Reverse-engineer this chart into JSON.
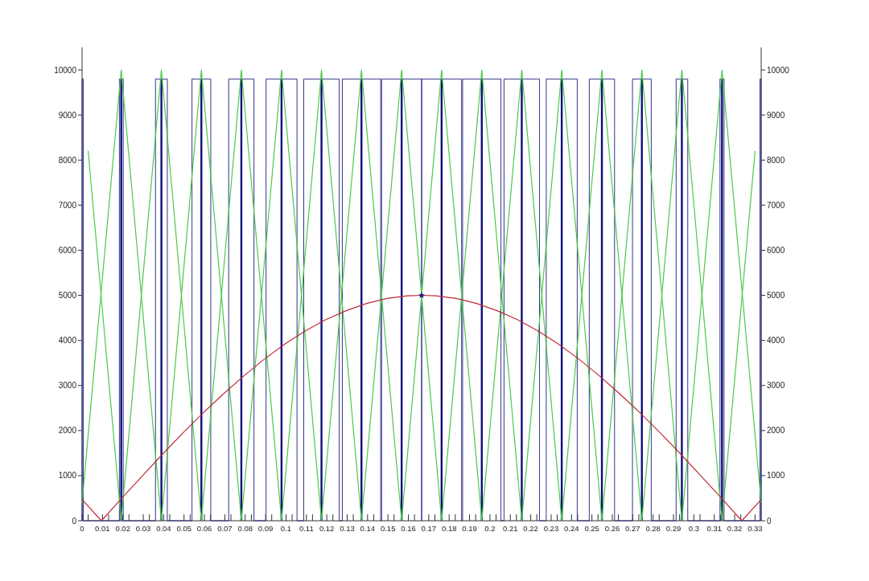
{
  "chart_data": {
    "type": "line",
    "xlim": [
      0,
      0.333
    ],
    "xticks": [
      0,
      {
        "value": 0.003,
        "label": null
      },
      0.01,
      {
        "value": 0.013,
        "label": null
      },
      0.02,
      {
        "value": 0.023,
        "label": null
      },
      0.03,
      {
        "value": 0.033,
        "label": null
      },
      0.04,
      {
        "value": 0.043,
        "label": null
      },
      0.05,
      {
        "value": 0.053,
        "label": null
      },
      0.06,
      {
        "value": 0.063,
        "label": null
      },
      0.07,
      {
        "value": 0.073,
        "label": null
      },
      0.08,
      {
        "value": 0.083,
        "label": null
      },
      0.09,
      {
        "value": 0.093,
        "label": null
      },
      0.1,
      {
        "value": 0.103,
        "label": null
      },
      0.11,
      {
        "value": 0.113,
        "label": null
      },
      0.12,
      {
        "value": 0.123,
        "label": null
      },
      0.13,
      {
        "value": 0.133,
        "label": null
      },
      0.14,
      {
        "value": 0.143,
        "label": null
      },
      0.15,
      {
        "value": 0.153,
        "label": null
      },
      0.16,
      {
        "value": 0.163,
        "label": null
      },
      0.17,
      {
        "value": 0.173,
        "label": null
      },
      0.18,
      {
        "value": 0.183,
        "label": null
      },
      0.19,
      {
        "value": 0.193,
        "label": null
      },
      0.2,
      {
        "value": 0.203,
        "label": null
      },
      0.21,
      {
        "value": 0.213,
        "label": null
      },
      0.22,
      {
        "value": 0.223,
        "label": null
      },
      0.23,
      {
        "value": 0.233,
        "label": null
      },
      0.24,
      {
        "value": 0.243,
        "label": null
      },
      0.25,
      {
        "value": 0.253,
        "label": null
      },
      0.26,
      {
        "value": 0.263,
        "label": null
      },
      0.27,
      {
        "value": 0.273,
        "label": null
      },
      0.28,
      {
        "value": 0.283,
        "label": null
      },
      0.29,
      {
        "value": 0.293,
        "label": null
      },
      0.3,
      {
        "value": 0.303,
        "label": null
      },
      0.31,
      {
        "value": 0.313,
        "label": null
      },
      0.32,
      {
        "value": 0.323,
        "label": null
      },
      0.33
    ],
    "ylim": [
      0,
      10500
    ],
    "yticks": [
      0,
      1000,
      2000,
      3000,
      4000,
      5000,
      6000,
      7000,
      8000,
      9000,
      10000
    ],
    "y2lim": [
      0,
      10500
    ],
    "y2ticks": [
      0,
      1000,
      2000,
      3000,
      4000,
      5000,
      6000,
      7000,
      8000,
      9000,
      10000
    ],
    "series": [
      {
        "type": "step",
        "color": "#34348c",
        "x": [
          0,
          0,
          0.0006,
          0.0183,
          0.0202,
          0.036,
          0.0418,
          0.0539,
          0.0631,
          0.0719,
          0.0843,
          0.0902,
          0.1054,
          0.1087,
          0.1261,
          0.1276,
          0.1464,
          0.1469,
          0.1665,
          0.1665,
          0.1861,
          0.1866,
          0.2054,
          0.2069,
          0.2243,
          0.2276,
          0.2428,
          0.2487,
          0.2611,
          0.2699,
          0.2791,
          0.2913,
          0.297,
          0.3128,
          0.3148,
          0.3324,
          0.333
        ],
        "values": [
          0,
          9800,
          0,
          9800,
          0,
          9800,
          0,
          9800,
          0,
          9800,
          0,
          9800,
          0,
          9800,
          0,
          9800,
          0,
          9800,
          0,
          9800,
          0,
          9800,
          0,
          9800,
          0,
          9800,
          0,
          9800,
          0,
          9800,
          0,
          9800,
          0,
          9800,
          0,
          9800,
          0
        ]
      },
      {
        "type": "bar",
        "color": "#0e0e7a",
        "x": [
          0.0192,
          0.0389,
          0.0585,
          0.0781,
          0.0978,
          0.1174,
          0.137,
          0.1567,
          0.1763,
          0.196,
          0.2156,
          0.2352,
          0.2549,
          0.2745,
          0.2941,
          0.3138
        ],
        "values": [
          9800,
          9800,
          9800,
          9800,
          9800,
          9800,
          9800,
          9800,
          9800,
          9800,
          9800,
          9800,
          9800,
          9800,
          9800,
          9800
        ]
      },
      {
        "type": "line",
        "color": "#4cc84c",
        "x": [
          0,
          0.0192,
          0.0389,
          0.0585,
          0.0781,
          0.0978,
          0.1174,
          0.137,
          0.1567,
          0.1763,
          0.196,
          0.2156,
          0.2352,
          0.2549,
          0.2745,
          0.2941,
          0.3138,
          0.33
        ],
        "values": [
          400,
          10000,
          0,
          10000,
          0,
          10000,
          0,
          10000,
          0,
          10000,
          0,
          10000,
          0,
          10000,
          0,
          10000,
          0,
          8200
        ]
      },
      {
        "type": "line",
        "color": "#4cc84c",
        "x": [
          0.003,
          0.0192,
          0.0389,
          0.0585,
          0.0781,
          0.0978,
          0.1174,
          0.137,
          0.1567,
          0.1763,
          0.196,
          0.2156,
          0.2352,
          0.2549,
          0.2745,
          0.2941,
          0.3138,
          0.333
        ],
        "values": [
          8200,
          0,
          10000,
          0,
          10000,
          0,
          10000,
          0,
          10000,
          0,
          10000,
          0,
          10000,
          0,
          10000,
          0,
          10000,
          400
        ]
      },
      {
        "color": "#bf2b35",
        "x": [
          0,
          0.0095,
          0.0195,
          0.0295,
          0.0395,
          0.0495,
          0.0595,
          0.0695,
          0.0795,
          0.0895,
          0.0995,
          0.1095,
          0.1195,
          0.1295,
          0.1395,
          0.1495,
          0.1595,
          0.1665,
          0.1735,
          0.1835,
          0.1935,
          0.2035,
          0.2135,
          0.2235,
          0.2335,
          0.2435,
          0.2535,
          0.2635,
          0.2735,
          0.2835,
          0.2935,
          0.3035,
          0.3135,
          0.3235,
          0.333
        ],
        "values": [
          470,
          0,
          500,
          990,
          1480,
          1950,
          2400,
          2820,
          3220,
          3590,
          3920,
          4210,
          4460,
          4660,
          4820,
          4930,
          4990,
          5000,
          4990,
          4930,
          4820,
          4660,
          4460,
          4210,
          3920,
          3590,
          3220,
          2820,
          2400,
          1950,
          1480,
          990,
          500,
          0,
          470
        ]
      },
      {
        "type": "scatter",
        "color": "#14148a",
        "marker": "star",
        "x": [
          0.1665
        ],
        "values": [
          5000
        ]
      }
    ]
  }
}
